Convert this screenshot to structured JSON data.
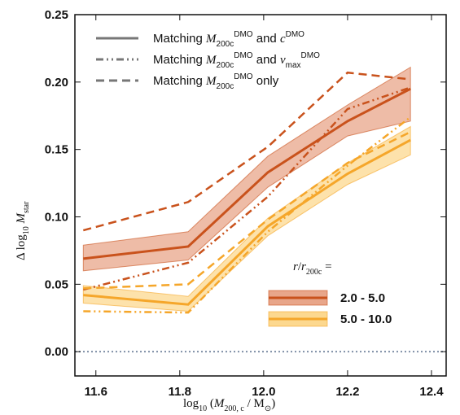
{
  "chart_data": {
    "type": "line",
    "x": [
      11.57,
      11.82,
      12.01,
      12.2,
      12.35
    ],
    "xlim": [
      11.55,
      12.435
    ],
    "ylim": [
      -0.018,
      0.25
    ],
    "xticks": [
      11.6,
      11.8,
      {
        "value": 12,
        "label": "12.0"
      },
      12.2,
      12.4
    ],
    "yticks": [
      {
        "value": 0,
        "label": "0.00"
      },
      0.05,
      {
        "value": 0.1,
        "label": "0.10"
      },
      0.15,
      {
        "value": 0.2,
        "label": "0.20"
      },
      0.25
    ],
    "xlabel": [
      "log",
      "10",
      " (",
      "M",
      "200, c",
      " / M",
      "⊙",
      ")"
    ],
    "ylabel": [
      "Δ log",
      "10",
      " M",
      "star"
    ],
    "reference_line": {
      "value": 0,
      "color": "#7f8fa6"
    },
    "line_styles": [
      {
        "dash": "solid",
        "label": [
          "Matching ",
          "M",
          "200c",
          "DMO",
          " and ",
          "c",
          "DMO"
        ]
      },
      {
        "dash": "dashdot",
        "label": [
          "Matching ",
          "M",
          "200c",
          "DMO",
          " and ",
          "v",
          "max",
          "DMO"
        ]
      },
      {
        "dash": "dashed",
        "label": [
          "Matching ",
          "M",
          "200c",
          "DMO",
          " only"
        ]
      }
    ],
    "legend_title": [
      "r",
      "/",
      "r",
      "200c",
      " ="
    ],
    "groups": [
      {
        "name": "2.0 - 5.0",
        "color": "#c9521c",
        "band_color": "#e8a68a",
        "band_lower": [
          0.06,
          0.068,
          0.122,
          0.16,
          0.171
        ],
        "band_upper": [
          0.079,
          0.089,
          0.145,
          0.183,
          0.211
        ],
        "lines": [
          [
            0.069,
            0.078,
            0.133,
            0.171,
            0.195
          ],
          [
            0.046,
            0.066,
            0.115,
            0.18,
            0.196
          ],
          [
            0.09,
            0.111,
            0.152,
            0.207,
            0.202
          ]
        ]
      },
      {
        "name": "5.0 - 10.0",
        "color": "#f5a62a",
        "band_color": "#fcd88f",
        "band_lower": [
          0.036,
          0.03,
          0.086,
          0.124,
          0.146
        ],
        "band_upper": [
          0.049,
          0.041,
          0.099,
          0.14,
          0.167
        ],
        "lines": [
          [
            0.042,
            0.035,
            0.093,
            0.132,
            0.157
          ],
          [
            0.03,
            0.029,
            0.089,
            0.138,
            0.174
          ],
          [
            0.047,
            0.05,
            0.098,
            0.14,
            0.163
          ]
        ]
      }
    ]
  }
}
